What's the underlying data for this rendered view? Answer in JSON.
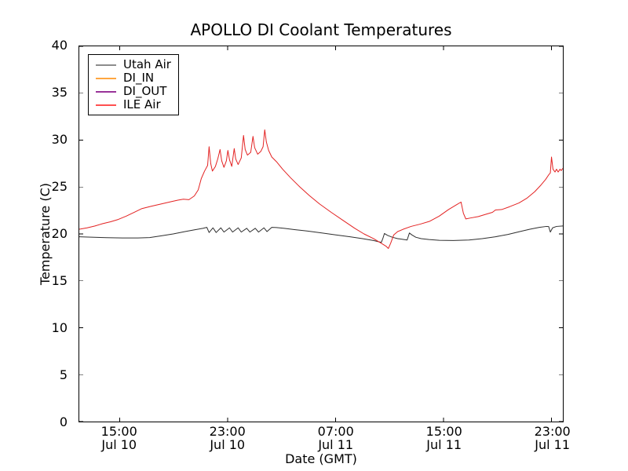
{
  "title": "APOLLO DI Coolant Temperatures",
  "axes": {
    "xlabel": "Date (GMT)",
    "ylabel": "Temperature (C)",
    "ylim": [
      0,
      40
    ],
    "y_ticks": [
      0,
      5,
      10,
      15,
      20,
      25,
      30,
      35,
      40
    ],
    "x_ticks": [
      {
        "time": "15:00",
        "date": "Jul 10",
        "hour": 3
      },
      {
        "time": "23:00",
        "date": "Jul 10",
        "hour": 11
      },
      {
        "time": "07:00",
        "date": "Jul 11",
        "hour": 19
      },
      {
        "time": "15:00",
        "date": "Jul 11",
        "hour": 27
      },
      {
        "time": "23:00",
        "date": "Jul 11",
        "hour": 35
      }
    ]
  },
  "legend": [
    {
      "label": "Utah Air",
      "color": "#8c8c8c"
    },
    {
      "label": "DI_IN",
      "color": "#ffa640"
    },
    {
      "label": "DI_OUT",
      "color": "#993399"
    },
    {
      "label": "ILE Air",
      "color": "#ff5050"
    }
  ],
  "chart_data": {
    "type": "line",
    "title": "APOLLO DI Coolant Temperatures",
    "xlabel": "Date (GMT)",
    "ylabel": "Temperature (C)",
    "ylim": [
      0,
      40
    ],
    "xlim_hours": [
      0,
      35.83
    ],
    "x_unit": "hours since Jul 10 12:00 GMT",
    "grid": false,
    "legend_position": "upper left",
    "series": [
      {
        "name": "Utah Air",
        "color": "#2e2e2e",
        "points": [
          [
            0,
            19.7
          ],
          [
            0.87,
            19.65
          ],
          [
            2.03,
            19.6
          ],
          [
            3.19,
            19.57
          ],
          [
            4.35,
            19.57
          ],
          [
            5.22,
            19.62
          ],
          [
            6.09,
            19.8
          ],
          [
            6.96,
            20.0
          ],
          [
            7.83,
            20.25
          ],
          [
            8.58,
            20.45
          ],
          [
            9.16,
            20.6
          ],
          [
            9.45,
            20.7
          ],
          [
            9.62,
            20.15
          ],
          [
            9.91,
            20.65
          ],
          [
            10.14,
            20.15
          ],
          [
            10.49,
            20.65
          ],
          [
            10.72,
            20.2
          ],
          [
            11.13,
            20.65
          ],
          [
            11.36,
            20.2
          ],
          [
            11.77,
            20.65
          ],
          [
            12.0,
            20.2
          ],
          [
            12.41,
            20.6
          ],
          [
            12.64,
            20.2
          ],
          [
            13.04,
            20.6
          ],
          [
            13.28,
            20.2
          ],
          [
            13.68,
            20.65
          ],
          [
            13.91,
            20.25
          ],
          [
            14.26,
            20.7
          ],
          [
            14.61,
            20.68
          ],
          [
            15.19,
            20.6
          ],
          [
            16.0,
            20.45
          ],
          [
            16.93,
            20.3
          ],
          [
            17.97,
            20.1
          ],
          [
            19.01,
            19.9
          ],
          [
            20.06,
            19.7
          ],
          [
            20.99,
            19.5
          ],
          [
            21.8,
            19.3
          ],
          [
            22.38,
            19.1
          ],
          [
            22.49,
            19.5
          ],
          [
            22.61,
            20.05
          ],
          [
            22.84,
            19.85
          ],
          [
            23.19,
            19.65
          ],
          [
            23.59,
            19.5
          ],
          [
            24.0,
            19.42
          ],
          [
            24.29,
            19.35
          ],
          [
            24.46,
            20.1
          ],
          [
            24.64,
            19.9
          ],
          [
            24.93,
            19.65
          ],
          [
            25.33,
            19.5
          ],
          [
            25.91,
            19.4
          ],
          [
            26.67,
            19.32
          ],
          [
            27.71,
            19.3
          ],
          [
            28.87,
            19.35
          ],
          [
            29.86,
            19.5
          ],
          [
            30.84,
            19.7
          ],
          [
            31.77,
            19.95
          ],
          [
            32.64,
            20.25
          ],
          [
            33.39,
            20.5
          ],
          [
            34.09,
            20.7
          ],
          [
            34.61,
            20.8
          ],
          [
            34.78,
            20.78
          ],
          [
            34.9,
            20.2
          ],
          [
            35.07,
            20.65
          ],
          [
            35.36,
            20.8
          ],
          [
            35.83,
            20.85
          ]
        ]
      },
      {
        "name": "DI_IN",
        "color": "#ffa500",
        "points": []
      },
      {
        "name": "DI_OUT",
        "color": "#800080",
        "points": []
      },
      {
        "name": "ILE Air",
        "color": "#e32222",
        "points": [
          [
            0,
            20.5
          ],
          [
            0.58,
            20.65
          ],
          [
            1.16,
            20.85
          ],
          [
            1.74,
            21.1
          ],
          [
            2.32,
            21.3
          ],
          [
            2.9,
            21.55
          ],
          [
            3.48,
            21.9
          ],
          [
            4.06,
            22.3
          ],
          [
            4.64,
            22.7
          ],
          [
            5.33,
            22.95
          ],
          [
            6.09,
            23.2
          ],
          [
            6.84,
            23.45
          ],
          [
            7.3,
            23.6
          ],
          [
            7.71,
            23.7
          ],
          [
            8.12,
            23.65
          ],
          [
            8.52,
            24.05
          ],
          [
            8.81,
            24.7
          ],
          [
            9.04,
            25.9
          ],
          [
            9.28,
            26.7
          ],
          [
            9.51,
            27.3
          ],
          [
            9.62,
            29.3
          ],
          [
            9.74,
            27.5
          ],
          [
            9.86,
            26.7
          ],
          [
            10.09,
            27.2
          ],
          [
            10.26,
            28.0
          ],
          [
            10.43,
            29.0
          ],
          [
            10.55,
            27.8
          ],
          [
            10.72,
            27.1
          ],
          [
            10.9,
            27.8
          ],
          [
            11.01,
            28.9
          ],
          [
            11.13,
            27.9
          ],
          [
            11.3,
            27.2
          ],
          [
            11.48,
            29.1
          ],
          [
            11.59,
            28.0
          ],
          [
            11.77,
            27.4
          ],
          [
            12.0,
            28.1
          ],
          [
            12.17,
            30.5
          ],
          [
            12.29,
            29.0
          ],
          [
            12.46,
            28.4
          ],
          [
            12.7,
            28.7
          ],
          [
            12.87,
            30.4
          ],
          [
            12.99,
            29.2
          ],
          [
            13.22,
            28.5
          ],
          [
            13.45,
            28.8
          ],
          [
            13.62,
            29.3
          ],
          [
            13.74,
            31.1
          ],
          [
            13.86,
            29.8
          ],
          [
            14.03,
            28.9
          ],
          [
            14.26,
            28.2
          ],
          [
            14.61,
            27.7
          ],
          [
            15.07,
            26.9
          ],
          [
            15.65,
            26.0
          ],
          [
            16.35,
            25.0
          ],
          [
            17.04,
            24.1
          ],
          [
            17.8,
            23.2
          ],
          [
            18.67,
            22.3
          ],
          [
            19.54,
            21.45
          ],
          [
            20.41,
            20.6
          ],
          [
            21.1,
            20.0
          ],
          [
            21.8,
            19.5
          ],
          [
            22.38,
            19.0
          ],
          [
            22.72,
            18.7
          ],
          [
            22.9,
            18.45
          ],
          [
            23.07,
            19.0
          ],
          [
            23.3,
            19.9
          ],
          [
            23.59,
            20.25
          ],
          [
            24.0,
            20.5
          ],
          [
            24.58,
            20.8
          ],
          [
            25.28,
            21.05
          ],
          [
            25.97,
            21.35
          ],
          [
            26.67,
            21.9
          ],
          [
            27.36,
            22.6
          ],
          [
            27.94,
            23.1
          ],
          [
            28.29,
            23.4
          ],
          [
            28.46,
            22.2
          ],
          [
            28.64,
            21.6
          ],
          [
            28.99,
            21.7
          ],
          [
            29.57,
            21.85
          ],
          [
            30.14,
            22.1
          ],
          [
            30.61,
            22.3
          ],
          [
            30.84,
            22.55
          ],
          [
            31.3,
            22.6
          ],
          [
            31.88,
            22.9
          ],
          [
            32.58,
            23.3
          ],
          [
            33.16,
            23.8
          ],
          [
            33.74,
            24.5
          ],
          [
            34.2,
            25.2
          ],
          [
            34.55,
            25.8
          ],
          [
            34.78,
            26.3
          ],
          [
            34.9,
            26.5
          ],
          [
            34.99,
            28.2
          ],
          [
            35.1,
            26.9
          ],
          [
            35.25,
            26.6
          ],
          [
            35.36,
            26.9
          ],
          [
            35.48,
            26.6
          ],
          [
            35.62,
            26.9
          ],
          [
            35.71,
            26.75
          ],
          [
            35.83,
            27.0
          ]
        ]
      }
    ]
  }
}
